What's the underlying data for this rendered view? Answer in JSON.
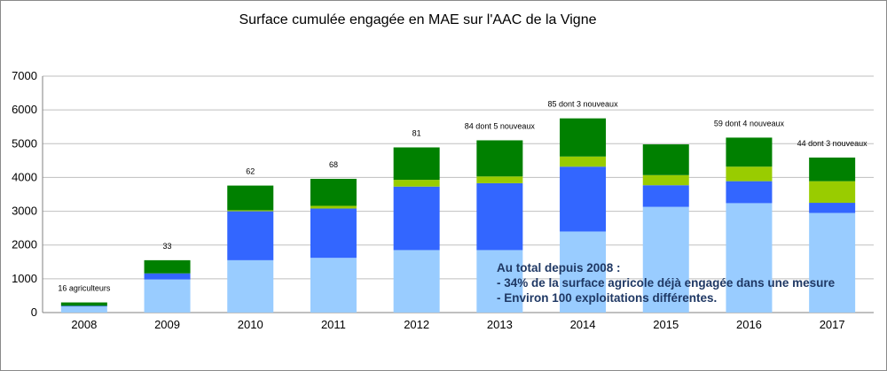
{
  "chart_data": {
    "type": "bar",
    "stacked": true,
    "title": "Surface cumulée engagée en MAE sur l'AAC de la Vigne",
    "xlabel": "",
    "ylabel": "",
    "ylim": [
      0,
      7000
    ],
    "yticks": [
      0,
      1000,
      2000,
      3000,
      4000,
      5000,
      6000,
      7000
    ],
    "grid": true,
    "legend": "none",
    "categories": [
      "2008",
      "2009",
      "2010",
      "2011",
      "2012",
      "2013",
      "2014",
      "2015",
      "2016",
      "2017"
    ],
    "series": [
      {
        "color": "#99ccff",
        "values": [
          180,
          980,
          1550,
          1620,
          1850,
          1850,
          2400,
          3130,
          3240,
          2950
        ]
      },
      {
        "color": "#3366ff",
        "values": [
          20,
          180,
          1450,
          1460,
          1880,
          1980,
          1920,
          640,
          650,
          300
        ]
      },
      {
        "color": "#99cc00",
        "values": [
          0,
          0,
          30,
          80,
          200,
          200,
          300,
          300,
          430,
          640
        ]
      },
      {
        "color": "#008000",
        "values": [
          100,
          390,
          730,
          800,
          960,
          1070,
          1130,
          910,
          860,
          700
        ]
      }
    ],
    "bar_labels": [
      "16 agriculteurs",
      "33",
      "62",
      "68",
      "81",
      "84 dont 5 nouveaux",
      "85 dont 3 nouveaux",
      "",
      "59 dont 4 nouveaux",
      "44 dont 3 nouveaux"
    ],
    "annotation": {
      "lines": [
        "Au total depuis 2008 :",
        "- 34% de la surface agricole déjà engagée dans une mesure",
        "- Environ 100 exploitations différentes."
      ],
      "color": "#1f3864"
    }
  }
}
